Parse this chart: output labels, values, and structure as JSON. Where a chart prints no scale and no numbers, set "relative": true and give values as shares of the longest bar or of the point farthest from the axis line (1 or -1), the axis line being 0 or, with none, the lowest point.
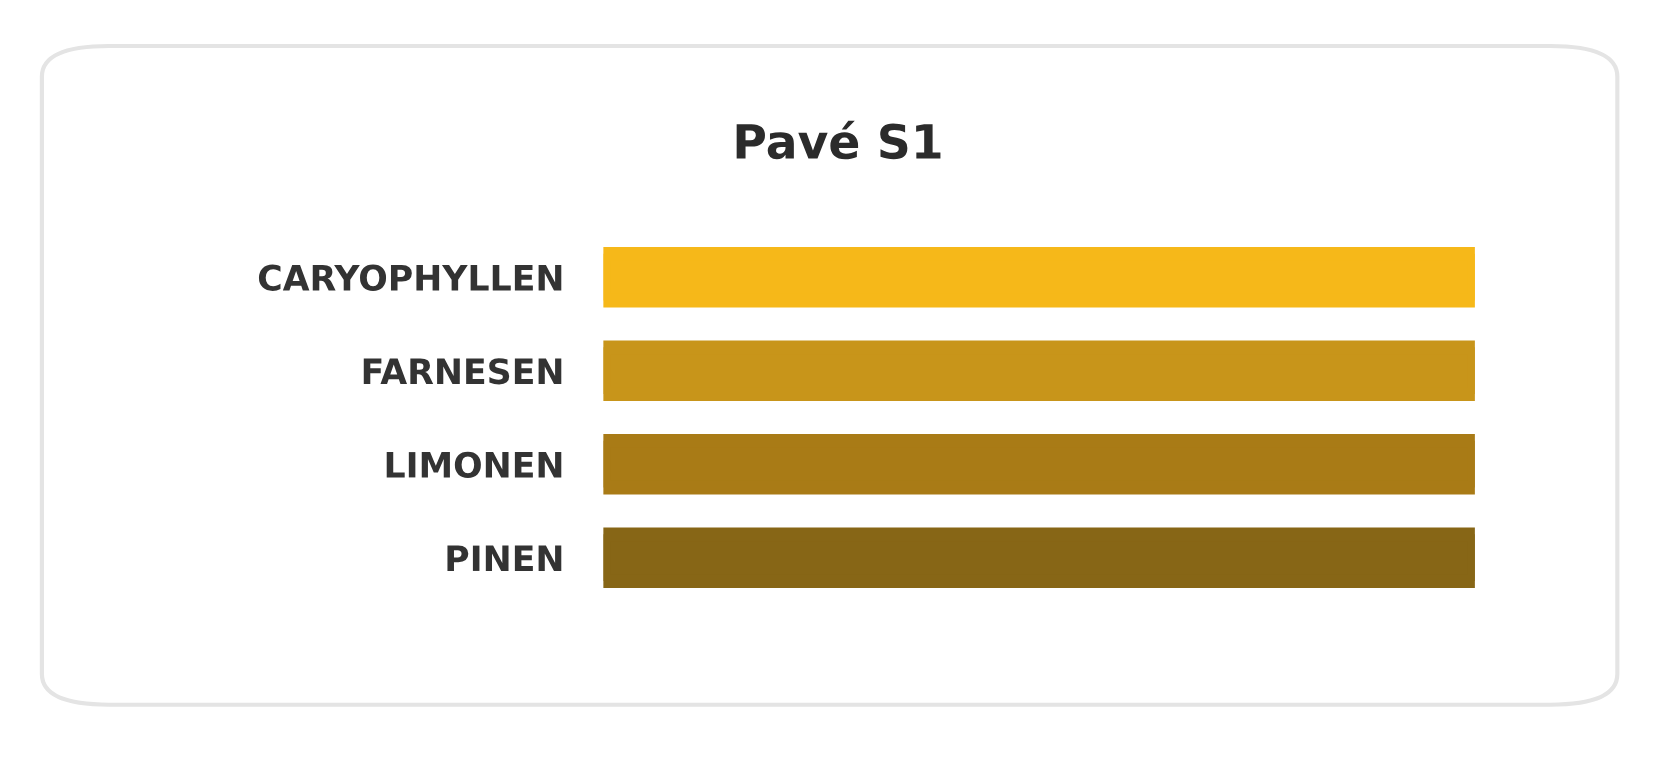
{
  "chart_data": {
    "type": "bar",
    "title": "Pavé S1",
    "orientation": "horizontal",
    "relative": true,
    "categories": [
      "CARYOPHYLLEN",
      "FARNESEN",
      "LIMONEN",
      "PINEN"
    ],
    "values": [
      1,
      1,
      1,
      1
    ],
    "colors": [
      "#f6b819",
      "#c8951a",
      "#a97b16",
      "#876616"
    ],
    "grid": false,
    "legend": false
  }
}
